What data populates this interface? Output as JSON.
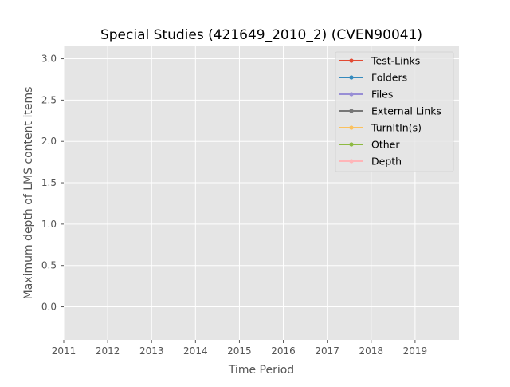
{
  "chart_data": {
    "type": "line",
    "title": "Special Studies (421649_2010_2) (CVEN90041)",
    "xlabel": "Time Period",
    "ylabel": "Maximum depth of LMS content items",
    "x_ticks": [
      "2011",
      "2012",
      "2013",
      "2014",
      "2015",
      "2016",
      "2017",
      "2018",
      "2019"
    ],
    "y_ticks": [
      "0.0",
      "0.5",
      "1.0",
      "1.5",
      "2.0",
      "2.5",
      "3.0"
    ],
    "xlim": [
      2011,
      2020
    ],
    "ylim": [
      -0.4,
      3.15
    ],
    "grid": true,
    "legend_position": "upper-right",
    "series": [
      {
        "name": "Test-Links",
        "color": "#E24A33",
        "values": []
      },
      {
        "name": "Folders",
        "color": "#348ABD",
        "values": []
      },
      {
        "name": "Files",
        "color": "#988ED5",
        "values": []
      },
      {
        "name": "External Links",
        "color": "#777777",
        "values": []
      },
      {
        "name": "TurnItIn(s)",
        "color": "#FBC15E",
        "values": []
      },
      {
        "name": "Other",
        "color": "#8EBA42",
        "values": []
      },
      {
        "name": "Depth",
        "color": "#FFB5B8",
        "values": []
      }
    ]
  }
}
